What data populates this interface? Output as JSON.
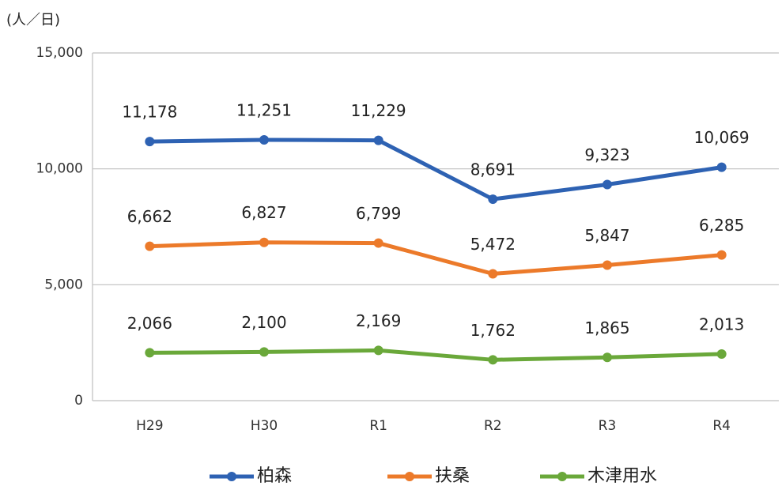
{
  "chart_data": {
    "type": "line",
    "y_axis_label": "(人／日)",
    "categories": [
      "H29",
      "H30",
      "R1",
      "R2",
      "R3",
      "R4"
    ],
    "series": [
      {
        "name": "柏森",
        "color": "#2e62b3",
        "values": [
          11178,
          11251,
          11229,
          8691,
          9323,
          10069
        ],
        "value_labels": [
          "11,178",
          "11,251",
          "11,229",
          "8,691",
          "9,323",
          "10,069"
        ]
      },
      {
        "name": "扶桑",
        "color": "#ec7a2a",
        "values": [
          6662,
          6827,
          6799,
          5472,
          5847,
          6285
        ],
        "value_labels": [
          "6,662",
          "6,827",
          "6,799",
          "5,472",
          "5,847",
          "6,285"
        ]
      },
      {
        "name": "木津用水",
        "color": "#6aa83a",
        "values": [
          2066,
          2100,
          2169,
          1762,
          1865,
          2013
        ],
        "value_labels": [
          "2,066",
          "2,100",
          "2,169",
          "1,762",
          "1,865",
          "2,013"
        ]
      }
    ],
    "ylim": [
      0,
      15000
    ],
    "yticks": [
      0,
      {
        "value": 5000,
        "label": "5,000"
      },
      {
        "value": 10000,
        "label": "10,000"
      },
      {
        "value": 15000,
        "label": "15,000"
      }
    ],
    "grid": true,
    "legend": "bottom"
  }
}
